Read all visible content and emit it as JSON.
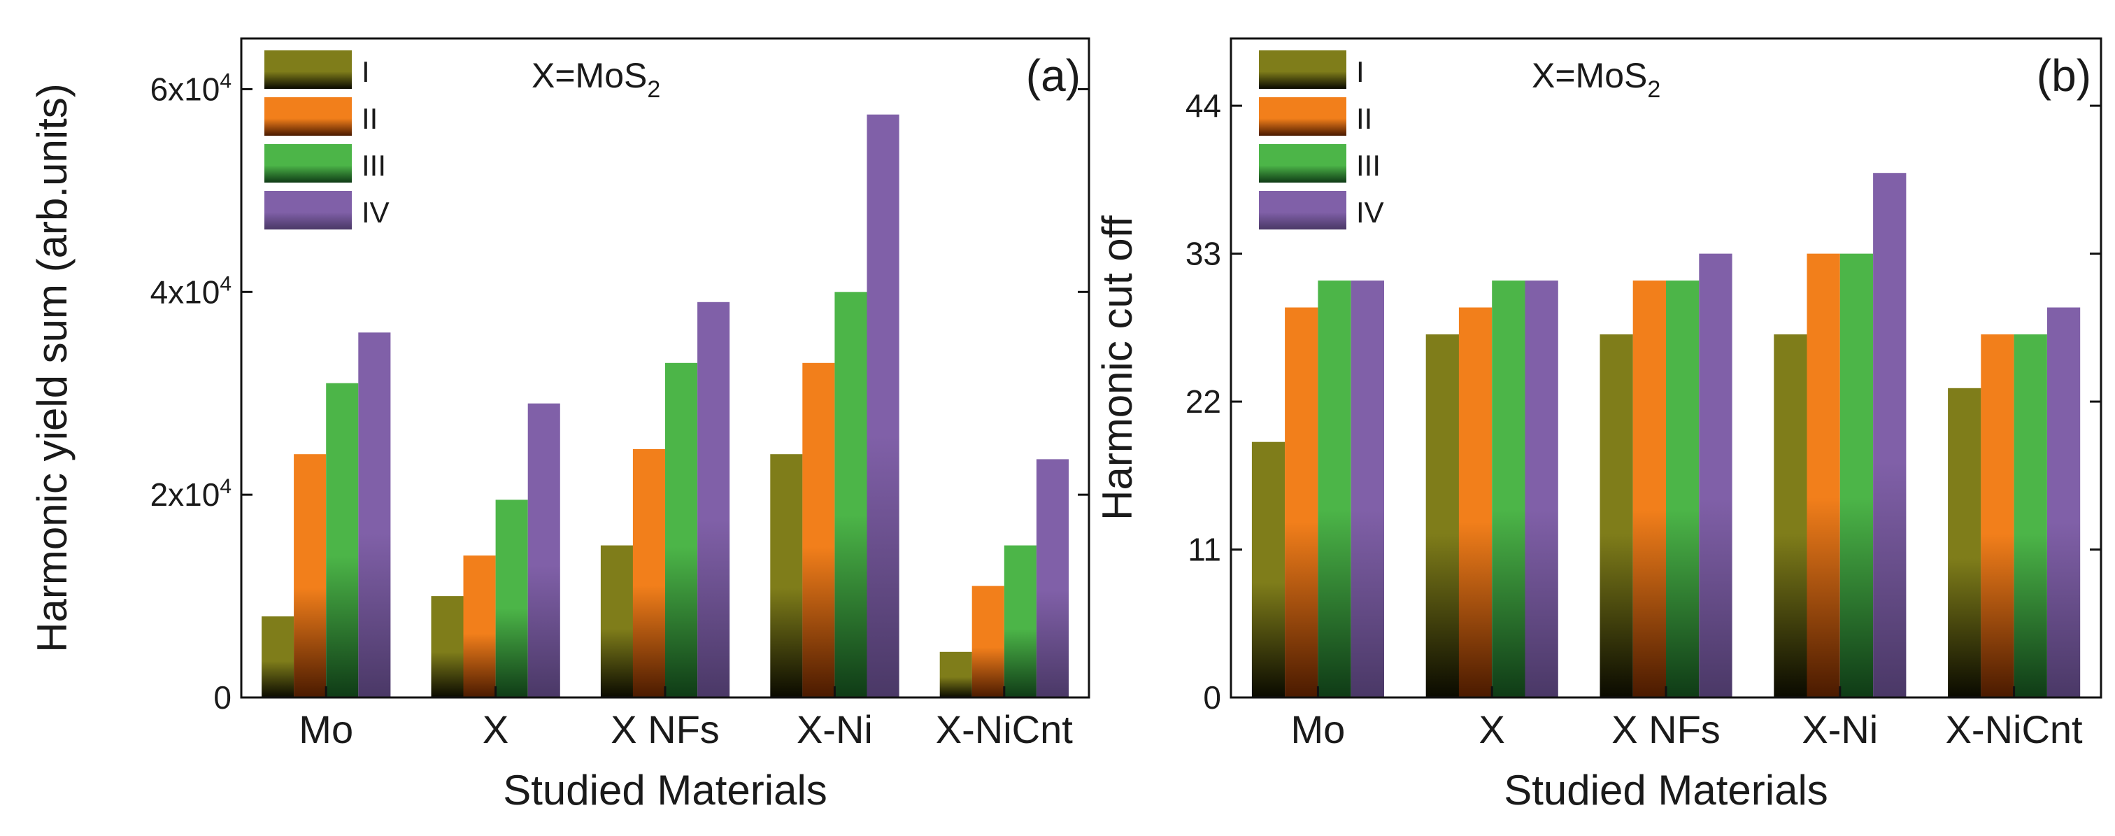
{
  "chart_data": [
    {
      "type": "bar",
      "panel_label": "(a)",
      "annotation": "X=MoS",
      "annotation_sub": "2",
      "categories": [
        "Mo",
        "X",
        "X NFs",
        "X-Ni",
        "X-NiCnt"
      ],
      "series": [
        {
          "name": "I",
          "values": [
            8000,
            10000,
            15000,
            24000,
            4500
          ]
        },
        {
          "name": "II",
          "values": [
            24000,
            14000,
            24500,
            33000,
            11000
          ]
        },
        {
          "name": "III",
          "values": [
            31000,
            19500,
            33000,
            40000,
            15000
          ]
        },
        {
          "name": "IV",
          "values": [
            36000,
            29000,
            39000,
            57500,
            23500
          ]
        }
      ],
      "ylabel": "Harmonic yield sum (arb.units)",
      "xlabel": "Studied Materials",
      "ylim": [
        0,
        65000
      ],
      "yticks": [
        {
          "value": 0,
          "base": "0",
          "exp": ""
        },
        {
          "value": 20000,
          "base": "2x10",
          "exp": "4"
        },
        {
          "value": 40000,
          "base": "4x10",
          "exp": "4"
        },
        {
          "value": 60000,
          "base": "6x10",
          "exp": "4"
        }
      ],
      "legend_position": "top-left"
    },
    {
      "type": "bar",
      "panel_label": "(b)",
      "annotation": "X=MoS",
      "annotation_sub": "2",
      "categories": [
        "Mo",
        "X",
        "X NFs",
        "X-Ni",
        "X-NiCnt"
      ],
      "series": [
        {
          "name": "I",
          "values": [
            19,
            27,
            27,
            27,
            23
          ]
        },
        {
          "name": "II",
          "values": [
            29,
            29,
            31,
            33,
            27
          ]
        },
        {
          "name": "III",
          "values": [
            31,
            31,
            31,
            33,
            27
          ]
        },
        {
          "name": "IV",
          "values": [
            31,
            31,
            33,
            39,
            29
          ]
        }
      ],
      "ylabel": "Harmonic cut off",
      "xlabel": "Studied Materials",
      "ylim": [
        0,
        49
      ],
      "yticks": [
        {
          "value": 0,
          "base": "0",
          "exp": ""
        },
        {
          "value": 11,
          "base": "11",
          "exp": ""
        },
        {
          "value": 22,
          "base": "22",
          "exp": ""
        },
        {
          "value": 33,
          "base": "33",
          "exp": ""
        },
        {
          "value": 44,
          "base": "44",
          "exp": ""
        }
      ],
      "legend_position": "top-left"
    }
  ],
  "series_colors": {
    "I": {
      "top": "#7f7d1a",
      "bottom": "#0a0a00"
    },
    "II": {
      "top": "#f27f1b",
      "bottom": "#4a1a00"
    },
    "III": {
      "top": "#4cb548",
      "bottom": "#0f3b16"
    },
    "IV": {
      "top": "#8060a8",
      "bottom": "#4a3866"
    }
  }
}
